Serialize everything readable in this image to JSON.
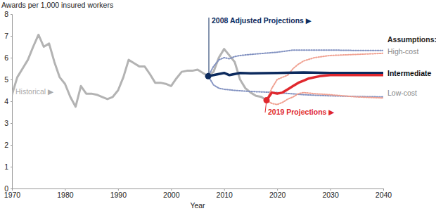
{
  "chart_data": {
    "type": "line",
    "y_label": "Awards per 1,000 insured workers",
    "x_label": "Year",
    "xlim": [
      1970,
      2040
    ],
    "xticks": [
      1970,
      1980,
      1990,
      2000,
      2010,
      2020,
      2030,
      2040
    ],
    "ylim": [
      0,
      8
    ],
    "yticks": [
      0,
      1,
      2,
      3,
      4,
      5,
      6,
      7,
      8
    ],
    "grid": false,
    "annotations": [
      "Historical ▶",
      "2008 Adjusted Projections ▶",
      "2019 Projections ▶",
      "Assumptions:",
      "High-cost",
      "Intermediate",
      "Low-cost"
    ],
    "series": [
      {
        "color": "#b3b3b3",
        "line_style": "solid",
        "x": [
          1970,
          1971,
          1972,
          1973,
          1974,
          1975,
          1976,
          1977,
          1978,
          1979,
          1980,
          1981,
          1982,
          1983,
          1984,
          1985,
          1986,
          1987,
          1988,
          1989,
          1990,
          1991,
          1992,
          1993,
          1994,
          1995,
          1996,
          1997,
          1998,
          1999,
          2000,
          2001,
          2002,
          2003,
          2004,
          2005,
          2006,
          2007,
          2008,
          2009,
          2010,
          2011,
          2012,
          2013,
          2014,
          2015,
          2016,
          2017,
          2018
        ],
        "values": [
          4.3,
          5.1,
          5.5,
          5.9,
          6.5,
          7.05,
          6.5,
          6.65,
          5.8,
          5.1,
          4.8,
          4.2,
          3.75,
          4.7,
          4.35,
          4.35,
          4.3,
          4.2,
          4.1,
          4.2,
          4.5,
          5.1,
          5.9,
          5.75,
          5.6,
          5.6,
          5.25,
          4.85,
          4.85,
          4.8,
          4.7,
          5.05,
          5.35,
          5.4,
          5.4,
          5.45,
          5.3,
          5.15,
          5.35,
          6.0,
          6.4,
          6.1,
          5.8,
          5.0,
          4.6,
          4.4,
          4.25,
          4.2,
          4.05
        ]
      },
      {
        "color": "#8090c0",
        "line_style": "dotted",
        "x": [
          2007,
          2008,
          2009,
          2010,
          2011,
          2012,
          2013,
          2015,
          2020,
          2023,
          2025,
          2030,
          2035,
          2040
        ],
        "values": [
          5.15,
          5.6,
          5.9,
          6.0,
          5.95,
          6.05,
          6.1,
          6.15,
          6.25,
          6.35,
          6.35,
          6.35,
          6.33,
          6.33
        ]
      },
      {
        "color": "#8090c0",
        "line_style": "dotted",
        "x": [
          2007,
          2008,
          2009,
          2010,
          2012,
          2015,
          2020,
          2025,
          2030,
          2035,
          2040
        ],
        "values": [
          5.15,
          4.75,
          4.6,
          4.55,
          4.5,
          4.45,
          4.4,
          4.3,
          4.25,
          4.22,
          4.2
        ]
      },
      {
        "color": "#f0a090",
        "line_style": "dotted",
        "x": [
          2018,
          2019,
          2020,
          2021,
          2022,
          2023,
          2024,
          2025,
          2027,
          2030,
          2035,
          2040
        ],
        "values": [
          4.05,
          4.6,
          5.0,
          5.1,
          5.2,
          5.5,
          5.7,
          5.85,
          6.0,
          6.1,
          6.15,
          6.2
        ]
      },
      {
        "color": "#f0a090",
        "line_style": "dotted",
        "x": [
          2018,
          2019,
          2020,
          2021,
          2022,
          2023,
          2024,
          2025,
          2027,
          2030,
          2035,
          2040
        ],
        "values": [
          4.05,
          3.9,
          3.85,
          3.95,
          4.1,
          4.2,
          4.35,
          4.4,
          4.35,
          4.3,
          4.2,
          4.15
        ]
      },
      {
        "color": "#0d2b5e",
        "line_style": "solid",
        "marker": "start-dot",
        "x": [
          2007,
          2008,
          2009,
          2010,
          2011,
          2012,
          2013,
          2015,
          2020,
          2025,
          2030,
          2035,
          2040
        ],
        "values": [
          5.15,
          5.2,
          5.25,
          5.3,
          5.2,
          5.25,
          5.3,
          5.28,
          5.3,
          5.32,
          5.3,
          5.3,
          5.3
        ]
      },
      {
        "color": "#e0282e",
        "line_style": "solid",
        "marker": "start-dot",
        "x": [
          2018,
          2019,
          2020,
          2021,
          2022,
          2023,
          2024,
          2025,
          2026,
          2028,
          2030,
          2035,
          2040
        ],
        "values": [
          4.05,
          4.4,
          4.35,
          4.4,
          4.55,
          4.7,
          4.85,
          4.95,
          5.05,
          5.15,
          5.2,
          5.2,
          5.2
        ]
      }
    ]
  }
}
